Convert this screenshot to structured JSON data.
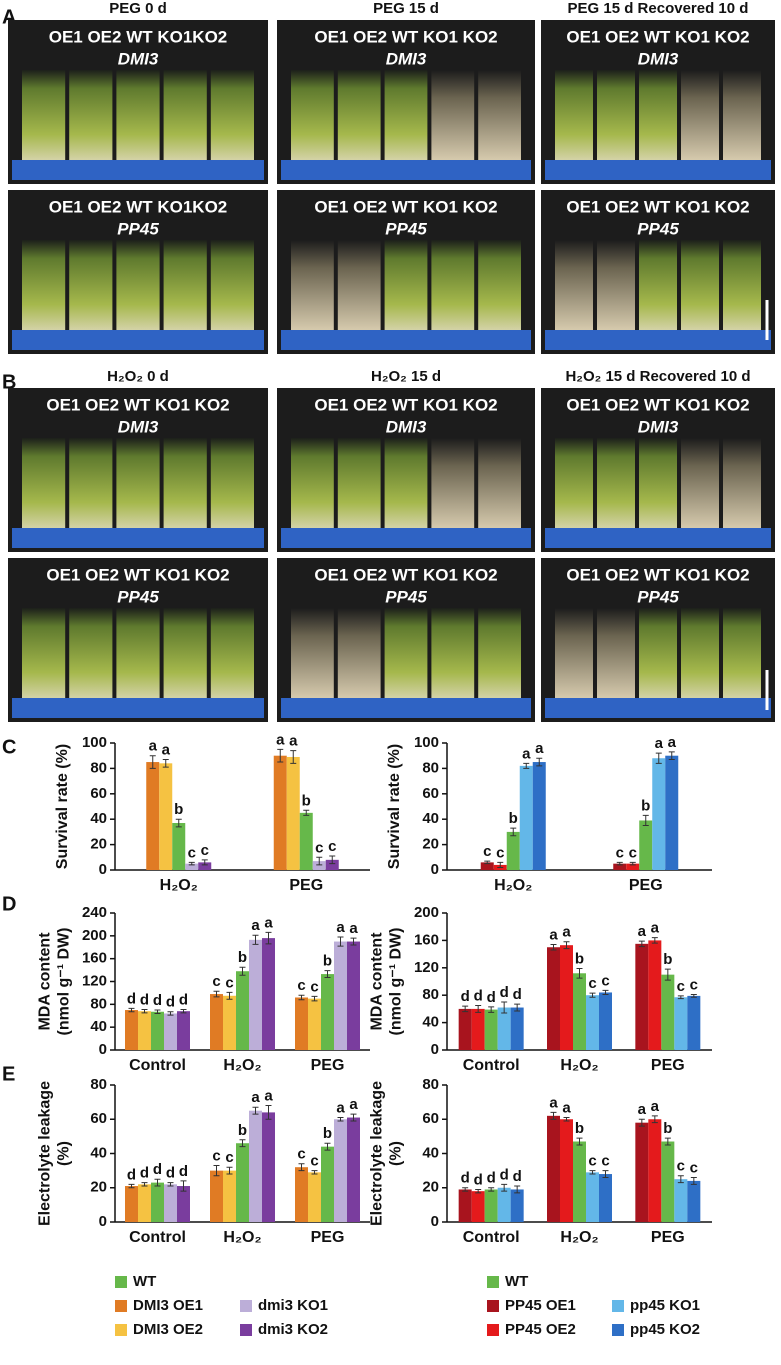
{
  "figure": {
    "panel_labels": [
      "A",
      "B",
      "C",
      "D",
      "E"
    ],
    "photo_panels": [
      {
        "titles": [
          "PEG 0 d",
          "PEG 15 d",
          "PEG 15 d Recovered 10 d"
        ],
        "rows": [
          [
            {
              "strains": "OE1 OE2 WT KO1KO2",
              "gene": "DMI3"
            },
            {
              "strains": "OE1 OE2 WT KO1 KO2",
              "gene": "DMI3"
            },
            {
              "strains": "OE1 OE2 WT KO1 KO2",
              "gene": "DMI3"
            }
          ],
          [
            {
              "strains": "OE1 OE2 WT KO1KO2",
              "gene": "PP45"
            },
            {
              "strains": "OE1 OE2 WT KO1 KO2",
              "gene": "PP45"
            },
            {
              "strains": "OE1 OE2 WT KO1 KO2",
              "gene": "PP45"
            }
          ]
        ]
      },
      {
        "titles": [
          "H₂O₂ 0 d",
          "H₂O₂ 15 d",
          "H₂O₂ 15 d Recovered 10 d"
        ],
        "rows": [
          [
            {
              "strains": "OE1 OE2 WT KO1 KO2",
              "gene": "DMI3"
            },
            {
              "strains": "OE1 OE2 WT KO1 KO2",
              "gene": "DMI3"
            },
            {
              "strains": "OE1 OE2 WT KO1 KO2",
              "gene": "DMI3"
            }
          ],
          [
            {
              "strains": "OE1 OE2 WT KO1 KO2",
              "gene": "PP45"
            },
            {
              "strains": "OE1 OE2 WT KO1 KO2",
              "gene": "PP45"
            },
            {
              "strains": "OE1 OE2 WT KO1 KO2",
              "gene": "PP45"
            }
          ]
        ]
      }
    ]
  },
  "chart_data": [
    {
      "type": "bar",
      "ylabel": [
        "Survival rate (%)"
      ],
      "categories": [
        "H₂O₂",
        "PEG"
      ],
      "ylim": [
        0,
        100
      ],
      "yticks": [
        0,
        20,
        40,
        60,
        80,
        100
      ],
      "series": [
        {
          "color": "#e07b24",
          "values": [
            85,
            90
          ],
          "errors": [
            5,
            5
          ],
          "letters": [
            "a",
            "a"
          ]
        },
        {
          "color": "#f5c242",
          "values": [
            84,
            89
          ],
          "errors": [
            3,
            5
          ],
          "letters": [
            "a",
            "a"
          ]
        },
        {
          "color": "#66b84a",
          "values": [
            37,
            45
          ],
          "errors": [
            3,
            2
          ],
          "letters": [
            "b",
            "b"
          ]
        },
        {
          "color": "#bcaed8",
          "values": [
            5,
            7
          ],
          "errors": [
            1,
            3
          ],
          "letters": [
            "c",
            "c"
          ]
        },
        {
          "color": "#7a3d9e",
          "values": [
            6,
            8
          ],
          "errors": [
            2,
            3
          ],
          "letters": [
            "c",
            "c"
          ]
        }
      ]
    },
    {
      "type": "bar",
      "ylabel": [
        "Survival rate (%)"
      ],
      "categories": [
        "H₂O₂",
        "PEG"
      ],
      "ylim": [
        0,
        100
      ],
      "yticks": [
        0,
        20,
        40,
        60,
        80,
        100
      ],
      "series": [
        {
          "color": "#a8141e",
          "values": [
            6,
            5
          ],
          "errors": [
            1,
            1
          ],
          "letters": [
            "c",
            "c"
          ]
        },
        {
          "color": "#e41a1c",
          "values": [
            4,
            5
          ],
          "errors": [
            2,
            1
          ],
          "letters": [
            "c",
            "c"
          ]
        },
        {
          "color": "#66b84a",
          "values": [
            30,
            39
          ],
          "errors": [
            3,
            4
          ],
          "letters": [
            "b",
            "b"
          ]
        },
        {
          "color": "#63b7e8",
          "values": [
            82,
            88
          ],
          "errors": [
            2,
            4
          ],
          "letters": [
            "a",
            "a"
          ]
        },
        {
          "color": "#2e6fc6",
          "values": [
            85,
            90
          ],
          "errors": [
            3,
            3
          ],
          "letters": [
            "a",
            "a"
          ]
        }
      ]
    },
    {
      "type": "bar",
      "ylabel": [
        "MDA content",
        "(nmol g⁻¹ DW)"
      ],
      "categories": [
        "Control",
        "H₂O₂",
        "PEG"
      ],
      "ylim": [
        0,
        240
      ],
      "yticks": [
        0,
        40,
        80,
        120,
        160,
        200,
        240
      ],
      "series": [
        {
          "color": "#e07b24",
          "values": [
            70,
            98,
            92
          ],
          "errors": [
            3,
            5,
            4
          ],
          "letters": [
            "d",
            "c",
            "c"
          ]
        },
        {
          "color": "#f5c242",
          "values": [
            68,
            95,
            90
          ],
          "errors": [
            3,
            6,
            4
          ],
          "letters": [
            "d",
            "c",
            "c"
          ]
        },
        {
          "color": "#66b84a",
          "values": [
            67,
            138,
            133
          ],
          "errors": [
            3,
            7,
            6
          ],
          "letters": [
            "d",
            "b",
            "b"
          ]
        },
        {
          "color": "#bcaed8",
          "values": [
            64,
            193,
            190
          ],
          "errors": [
            3,
            8,
            8
          ],
          "letters": [
            "d",
            "a",
            "a"
          ]
        },
        {
          "color": "#7a3d9e",
          "values": [
            68,
            196,
            190
          ],
          "errors": [
            3,
            10,
            6
          ],
          "letters": [
            "d",
            "a",
            "a"
          ]
        }
      ]
    },
    {
      "type": "bar",
      "ylabel": [
        "MDA content",
        "(nmol g⁻¹ DW)"
      ],
      "categories": [
        "Control",
        "H₂O₂",
        "PEG"
      ],
      "ylim": [
        0,
        200
      ],
      "yticks": [
        0,
        40,
        80,
        120,
        160,
        200
      ],
      "series": [
        {
          "color": "#a8141e",
          "values": [
            60,
            150,
            155
          ],
          "errors": [
            4,
            4,
            4
          ],
          "letters": [
            "d",
            "a",
            "a"
          ]
        },
        {
          "color": "#e41a1c",
          "values": [
            60,
            153,
            160
          ],
          "errors": [
            5,
            5,
            4
          ],
          "letters": [
            "d",
            "a",
            "a"
          ]
        },
        {
          "color": "#66b84a",
          "values": [
            59,
            112,
            110
          ],
          "errors": [
            4,
            7,
            8
          ],
          "letters": [
            "d",
            "b",
            "b"
          ]
        },
        {
          "color": "#63b7e8",
          "values": [
            62,
            80,
            77
          ],
          "errors": [
            8,
            3,
            2
          ],
          "letters": [
            "d",
            "c",
            "c"
          ]
        },
        {
          "color": "#2e6fc6",
          "values": [
            62,
            84,
            79
          ],
          "errors": [
            5,
            3,
            2
          ],
          "letters": [
            "d",
            "c",
            "c"
          ]
        }
      ]
    },
    {
      "type": "bar",
      "ylabel": [
        "Electrolyte leakage",
        "(%)"
      ],
      "categories": [
        "Control",
        "H₂O₂",
        "PEG"
      ],
      "ylim": [
        0,
        80
      ],
      "yticks": [
        0,
        20,
        40,
        60,
        80
      ],
      "series": [
        {
          "name": "DMI3 OE1",
          "color": "#e07b24",
          "values": [
            21,
            30,
            32
          ],
          "errors": [
            1,
            3,
            2
          ],
          "letters": [
            "d",
            "c",
            "c"
          ]
        },
        {
          "name": "DMI3 OE2",
          "color": "#f5c242",
          "values": [
            22,
            30,
            29
          ],
          "errors": [
            1,
            2,
            1
          ],
          "letters": [
            "d",
            "c",
            "c"
          ]
        },
        {
          "name": "WT",
          "color": "#66b84a",
          "values": [
            23,
            46,
            44
          ],
          "errors": [
            2,
            2,
            2
          ],
          "letters": [
            "d",
            "b",
            "b"
          ]
        },
        {
          "name": "dmi3 KO1",
          "color": "#bcaed8",
          "values": [
            22,
            65,
            60
          ],
          "errors": [
            1,
            2,
            1
          ],
          "letters": [
            "d",
            "a",
            "a"
          ]
        },
        {
          "name": "dmi3 KO2",
          "color": "#7a3d9e",
          "values": [
            21,
            64,
            61
          ],
          "errors": [
            3,
            4,
            2
          ],
          "letters": [
            "d",
            "a",
            "a"
          ]
        }
      ]
    },
    {
      "type": "bar",
      "ylabel": [
        "Electrolyte leakage",
        "(%)"
      ],
      "categories": [
        "Control",
        "H₂O₂",
        "PEG"
      ],
      "ylim": [
        0,
        80
      ],
      "yticks": [
        0,
        20,
        40,
        60,
        80
      ],
      "series": [
        {
          "name": "PP45 OE1",
          "color": "#a8141e",
          "values": [
            19,
            62,
            58
          ],
          "errors": [
            1,
            2,
            2
          ],
          "letters": [
            "d",
            "a",
            "a"
          ]
        },
        {
          "name": "PP45 OE2",
          "color": "#e41a1c",
          "values": [
            18,
            60,
            60
          ],
          "errors": [
            1,
            1,
            2
          ],
          "letters": [
            "d",
            "a",
            "a"
          ]
        },
        {
          "name": "WT",
          "color": "#66b84a",
          "values": [
            19,
            47,
            47
          ],
          "errors": [
            1,
            2,
            2
          ],
          "letters": [
            "d",
            "b",
            "b"
          ]
        },
        {
          "name": "pp45 KO1",
          "color": "#63b7e8",
          "values": [
            20,
            29,
            25
          ],
          "errors": [
            2,
            1,
            2
          ],
          "letters": [
            "d",
            "c",
            "c"
          ]
        },
        {
          "name": "pp45 KO2",
          "color": "#2e6fc6",
          "values": [
            19,
            28,
            24
          ],
          "errors": [
            2,
            2,
            2
          ],
          "letters": [
            "d",
            "c",
            "c"
          ]
        }
      ]
    }
  ]
}
